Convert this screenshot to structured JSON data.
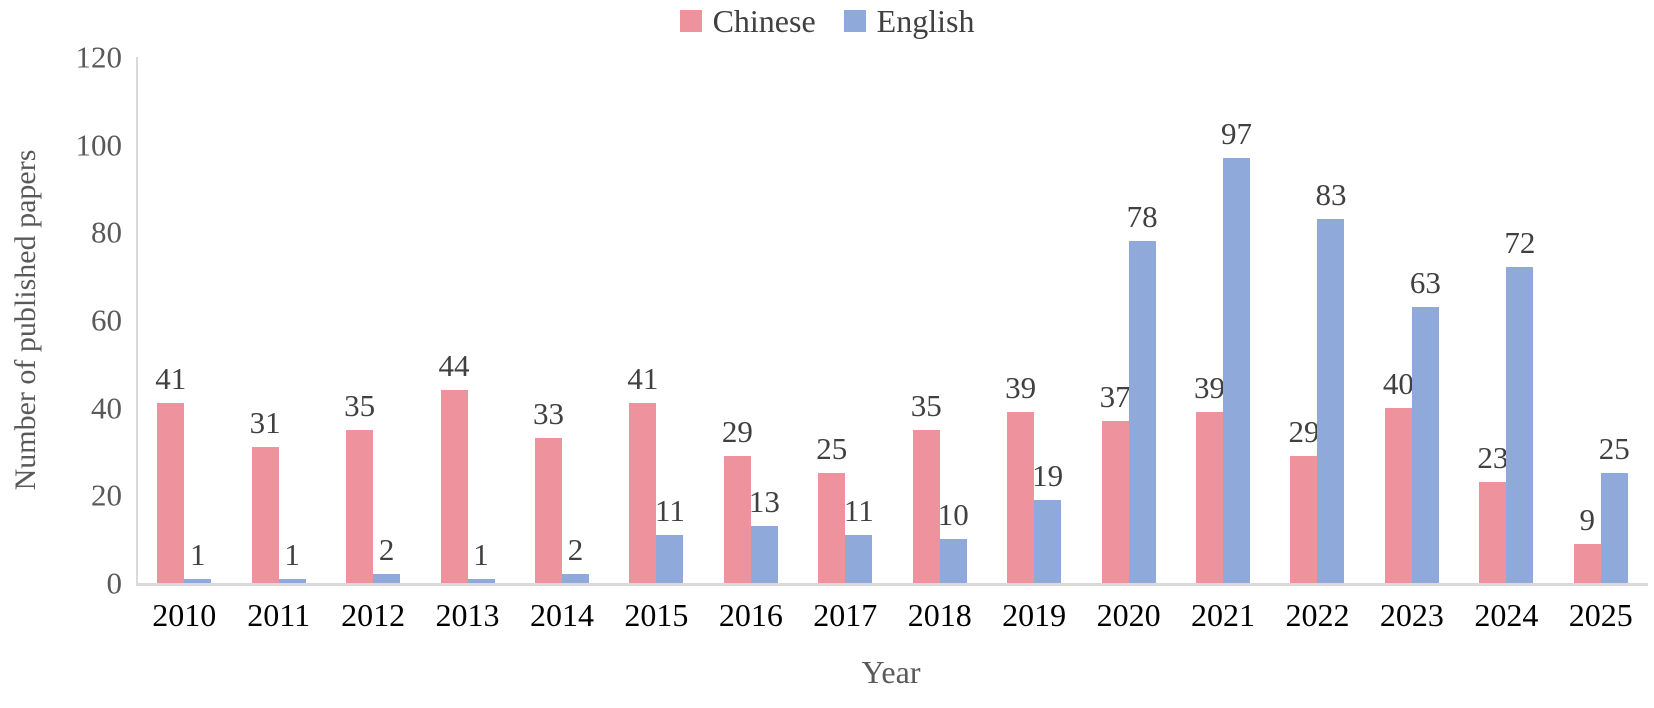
{
  "chart_data": {
    "type": "bar",
    "title": "",
    "categories": [
      "2010",
      "2011",
      "2012",
      "2013",
      "2014",
      "2015",
      "2016",
      "2017",
      "2018",
      "2019",
      "2020",
      "2021",
      "2022",
      "2023",
      "2024",
      "2025"
    ],
    "series": [
      {
        "name": "Chinese",
        "color": "#ee929e",
        "values": [
          41,
          31,
          35,
          44,
          33,
          41,
          29,
          25,
          35,
          39,
          37,
          39,
          29,
          40,
          23,
          9
        ]
      },
      {
        "name": "English",
        "color": "#8fa9db",
        "values": [
          1,
          1,
          2,
          1,
          2,
          11,
          13,
          11,
          10,
          19,
          78,
          97,
          83,
          63,
          72,
          25
        ]
      }
    ],
    "xlabel": "Year",
    "ylabel": "Number of published papers",
    "ylim": [
      0,
      120
    ],
    "yticks": [
      0,
      20,
      40,
      60,
      80,
      100,
      120
    ],
    "grid": false,
    "legend_position": "top",
    "data_labels": true
  },
  "colors": {
    "axis_line": "#d9d9d9",
    "tick_text": "#595959",
    "data_label_text": "#404040",
    "category_text": "#000000"
  }
}
